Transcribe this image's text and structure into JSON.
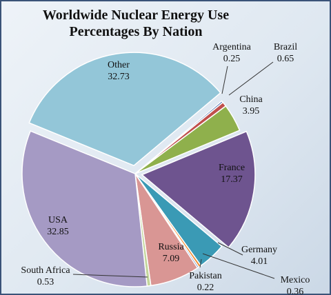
{
  "chart_data": {
    "type": "pie",
    "title_lines": [
      "Worldwide Nuclear  Energy Use",
      "Percentages By Nation"
    ],
    "slices": [
      {
        "name": "Argentina",
        "value": 0.25,
        "color": "#4a6fb0"
      },
      {
        "name": "Brazil",
        "value": 0.65,
        "color": "#c0504d"
      },
      {
        "name": "China",
        "value": 3.95,
        "color": "#8fb04c"
      },
      {
        "name": "France",
        "value": 17.37,
        "color": "#6e548f"
      },
      {
        "name": "Germany",
        "value": 4.01,
        "color": "#3a9ab5"
      },
      {
        "name": "Mexico",
        "value": 0.36,
        "color": "#f0913a"
      },
      {
        "name": "Pakistan",
        "value": 0.22,
        "color": "#5a7fc0"
      },
      {
        "name": "Russia",
        "value": 7.09,
        "color": "#d99694"
      },
      {
        "name": "South Africa",
        "value": 0.53,
        "color": "#c3d69b"
      },
      {
        "name": "USA",
        "value": 32.85,
        "color": "#a59ac4"
      },
      {
        "name": "Other",
        "value": 32.73,
        "color": "#93c6d8"
      }
    ]
  }
}
